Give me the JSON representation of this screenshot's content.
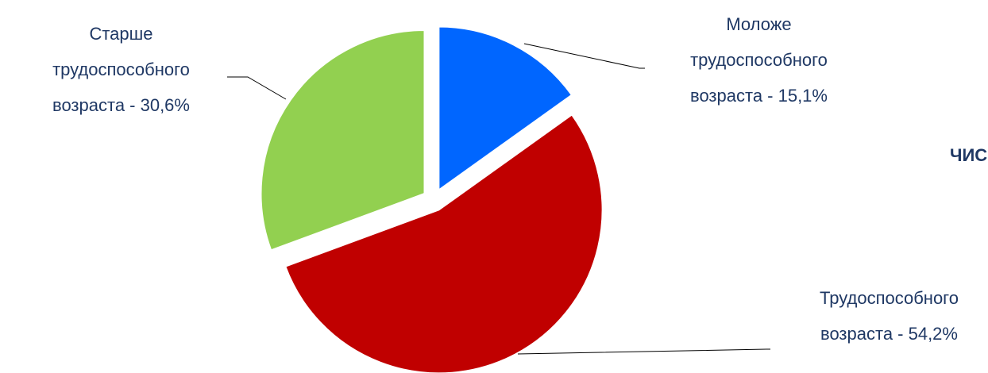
{
  "chart_data": {
    "type": "pie",
    "categories": [
      "Моложе трудоспособного возраста",
      "Трудоспособного возраста",
      "Старше трудоспособного возраста"
    ],
    "values": [
      15.1,
      54.2,
      30.6
    ],
    "value_labels": [
      "Моложе трудоспособного возраста  - 15,1%",
      "Трудоспособного возраста  - 54,2%",
      "Старше трудоспособного возраста - 30,6%"
    ],
    "colors": [
      "#0066ff",
      "#c00000",
      "#92d050"
    ],
    "annotation": "ЧИС"
  }
}
